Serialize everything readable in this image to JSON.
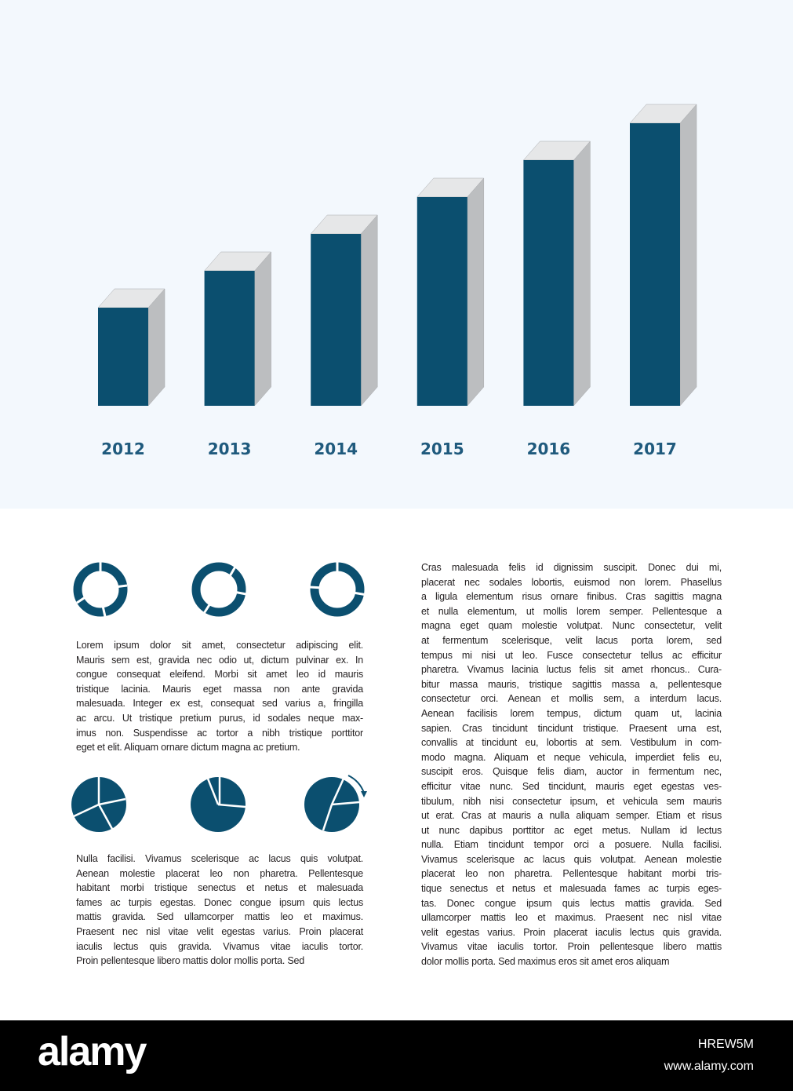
{
  "chart_data": {
    "type": "bar",
    "categories": [
      "2012",
      "2013",
      "2014",
      "2015",
      "2016",
      "2017"
    ],
    "values": [
      125,
      172,
      219,
      266,
      313,
      360
    ],
    "color": "#0b4f6f",
    "ylim": [
      0,
      360
    ]
  },
  "paragraphs": {
    "left_top": [
      "Lorem ipsum dolor sit amet, consectetur adipiscing elit.",
      "Mauris sem est, gravida nec odio ut, dictum pulvinar ex. In",
      "congue consequat eleifend. Morbi sit amet leo id mauris",
      "tristique lacinia. Mauris eget massa non ante gravida",
      "malesuada. Integer ex est, consequat sed varius a, fringilla",
      "ac arcu. Ut tristique pretium purus, id sodales neque max-",
      "imus non. Suspendisse ac tortor a nibh tristique porttitor",
      "eget et elit. Aliquam ornare dictum magna ac pretium."
    ],
    "left_bottom": [
      "Nulla facilisi. Vivamus scelerisque ac lacus quis volutpat.",
      "Aenean molestie placerat leo non pharetra. Pellentesque",
      "habitant morbi tristique senectus et netus et malesuada",
      "fames ac turpis egestas. Donec congue ipsum quis lectus",
      "mattis gravida. Sed ullamcorper mattis leo et maximus.",
      "Praesent nec nisl vitae velit egestas varius. Proin placerat",
      "iaculis lectus quis gravida. Vivamus vitae iaculis tortor.",
      "Proin pellentesque libero mattis dolor mollis porta. Sed"
    ],
    "right": [
      "Cras malesuada felis id dignissim suscipit. Donec dui mi,",
      "placerat nec sodales lobortis, euismod non lorem. Phasellus",
      "a ligula elementum risus ornare finibus. Cras sagittis magna",
      "et nulla elementum, ut mollis lorem semper. Pellentesque a",
      "magna eget quam molestie volutpat. Nunc consectetur, velit",
      "at fermentum scelerisque, velit lacus porta lorem, sed",
      "tempus mi nisi ut leo. Fusce consectetur tellus ac efficitur",
      "pharetra. Vivamus lacinia luctus felis sit amet rhoncus.. Cura-",
      "bitur massa mauris, tristique sagittis massa a, pellentesque",
      "consectetur orci. Aenean et mollis sem, a interdum lacus.",
      "Aenean facilisis lorem tempus, dictum quam ut, lacinia",
      "sapien. Cras tincidunt tincidunt tristique. Praesent urna est,",
      "convallis at tincidunt eu, lobortis at sem. Vestibulum in com-",
      "modo magna. Aliquam et neque vehicula, imperdiet felis eu,",
      "suscipit eros. Quisque felis diam, auctor in fermentum nec,",
      "efficitur vitae nunc. Sed tincidunt, mauris eget egestas ves-",
      "tibulum, nibh nisi consectetur ipsum, et vehicula sem mauris",
      "ut erat. Cras at mauris a nulla aliquam semper. Etiam et risus",
      "ut nunc dapibus porttitor ac eget metus. Nullam id lectus",
      "nulla. Etiam tincidunt tempor orci a posuere. Nulla facilisi.",
      "Vivamus scelerisque ac lacus quis volutpat. Aenean molestie",
      "placerat leo non pharetra. Pellentesque habitant morbi tris-",
      "tique senectus et netus et malesuada fames ac turpis eges-",
      "tas. Donec congue ipsum quis lectus mattis gravida. Sed",
      "ullamcorper mattis leo et maximus. Praesent nec nisl vitae",
      "velit egestas varius. Proin placerat iaculis lectus quis gravida.",
      "Vivamus vitae iaculis tortor. Proin pellentesque libero mattis",
      "dolor mollis porta. Sed maximus eros sit amet eros aliquam"
    ]
  },
  "footer": {
    "logo": "alamy",
    "image_id": "HREW5M",
    "url": "www.alamy.com"
  }
}
